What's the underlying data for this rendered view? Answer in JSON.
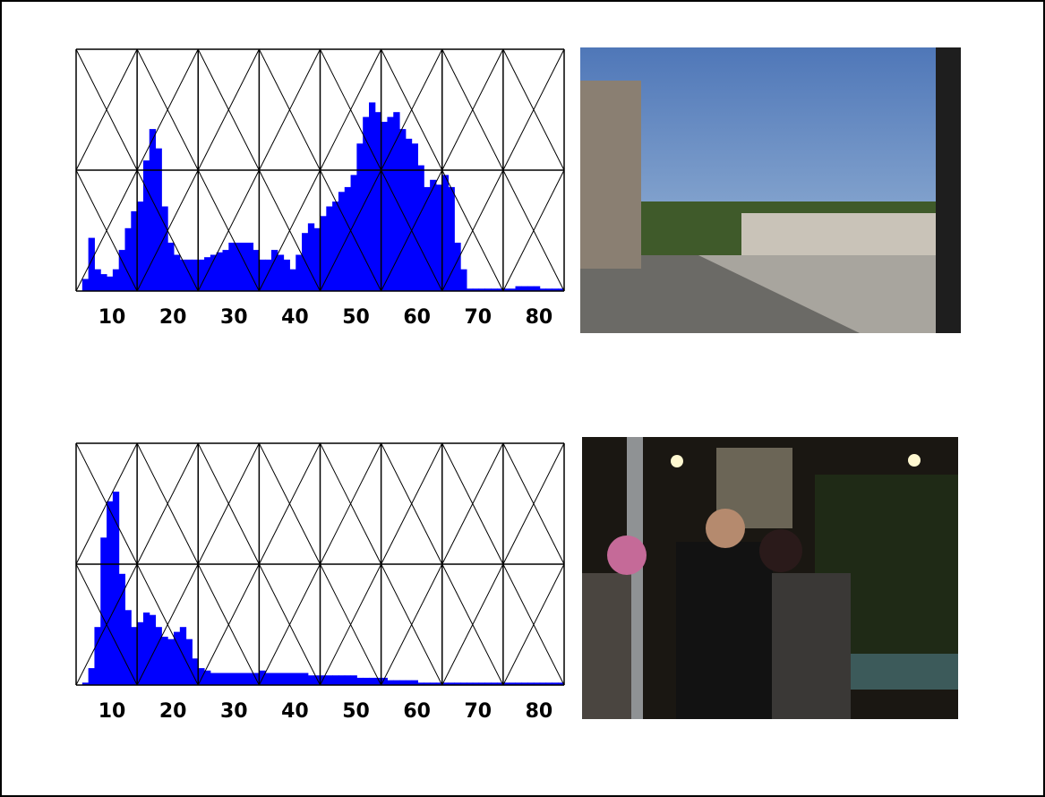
{
  "chart_data": [
    {
      "type": "histogram",
      "color": "#0000ff",
      "bins": [
        5,
        6,
        7,
        8,
        9,
        10,
        11,
        12,
        13,
        14,
        15,
        16,
        17,
        18,
        19,
        20,
        21,
        22,
        23,
        24,
        25,
        26,
        27,
        28,
        29,
        30,
        31,
        32,
        33,
        34,
        35,
        36,
        37,
        38,
        39,
        40,
        41,
        42,
        43,
        44,
        45,
        46,
        47,
        48,
        49,
        50,
        51,
        52,
        53,
        54,
        55,
        56,
        57,
        58,
        59,
        60,
        61,
        62,
        63,
        64,
        65,
        66,
        67,
        68,
        69,
        70,
        71,
        72,
        73,
        74,
        75,
        76,
        77,
        78,
        79,
        80,
        81,
        82,
        83,
        84,
        85
      ],
      "values": [
        0,
        5,
        22,
        9,
        7,
        6,
        9,
        17,
        26,
        33,
        37,
        54,
        67,
        59,
        35,
        20,
        15,
        13,
        13,
        13,
        13,
        14,
        15,
        16,
        17,
        20,
        20,
        20,
        20,
        17,
        13,
        13,
        17,
        15,
        13,
        9,
        15,
        24,
        28,
        26,
        31,
        35,
        37,
        41,
        43,
        48,
        61,
        72,
        78,
        74,
        70,
        72,
        74,
        67,
        63,
        61,
        52,
        43,
        46,
        44,
        48,
        43,
        20,
        9,
        1,
        1,
        1,
        1,
        1,
        1,
        1,
        1,
        2,
        2,
        2,
        2,
        1,
        1,
        1,
        1
      ],
      "xlim": [
        5,
        85
      ],
      "xticks": [
        10,
        20,
        30,
        40,
        50,
        60,
        70,
        80
      ],
      "ylim": [
        0,
        100
      ]
    },
    {
      "type": "histogram",
      "color": "#0000ff",
      "bins": [
        5,
        6,
        7,
        8,
        9,
        10,
        11,
        12,
        13,
        14,
        15,
        16,
        17,
        18,
        19,
        20,
        21,
        22,
        23,
        24,
        25,
        26,
        27,
        28,
        29,
        30,
        31,
        32,
        33,
        34,
        35,
        36,
        37,
        38,
        39,
        40,
        41,
        42,
        43,
        44,
        45,
        46,
        47,
        48,
        49,
        50,
        51,
        52,
        53,
        54,
        55,
        56,
        57,
        58,
        59,
        60,
        61,
        62,
        63,
        64,
        65,
        66,
        67,
        68,
        69,
        70,
        71,
        72,
        73,
        74,
        75,
        76,
        77,
        78,
        79,
        80,
        81,
        82,
        83,
        84,
        85
      ],
      "values": [
        0,
        1,
        7,
        24,
        61,
        76,
        80,
        46,
        31,
        24,
        26,
        30,
        29,
        24,
        20,
        19,
        22,
        24,
        19,
        11,
        7,
        6,
        5,
        5,
        5,
        5,
        5,
        5,
        5,
        5,
        6,
        5,
        5,
        5,
        5,
        5,
        5,
        5,
        4,
        4,
        4,
        4,
        4,
        4,
        4,
        4,
        3,
        3,
        3,
        3,
        3,
        2,
        2,
        2,
        2,
        2,
        1,
        1,
        1,
        1,
        1,
        1,
        1,
        1,
        1,
        1,
        1,
        1,
        1,
        1,
        1,
        1,
        1,
        1,
        1,
        1,
        1,
        1,
        1,
        1
      ],
      "xlim": [
        5,
        85
      ],
      "xticks": [
        10,
        20,
        30,
        40,
        50,
        60,
        70,
        80
      ],
      "ylim": [
        0,
        100
      ]
    }
  ]
}
